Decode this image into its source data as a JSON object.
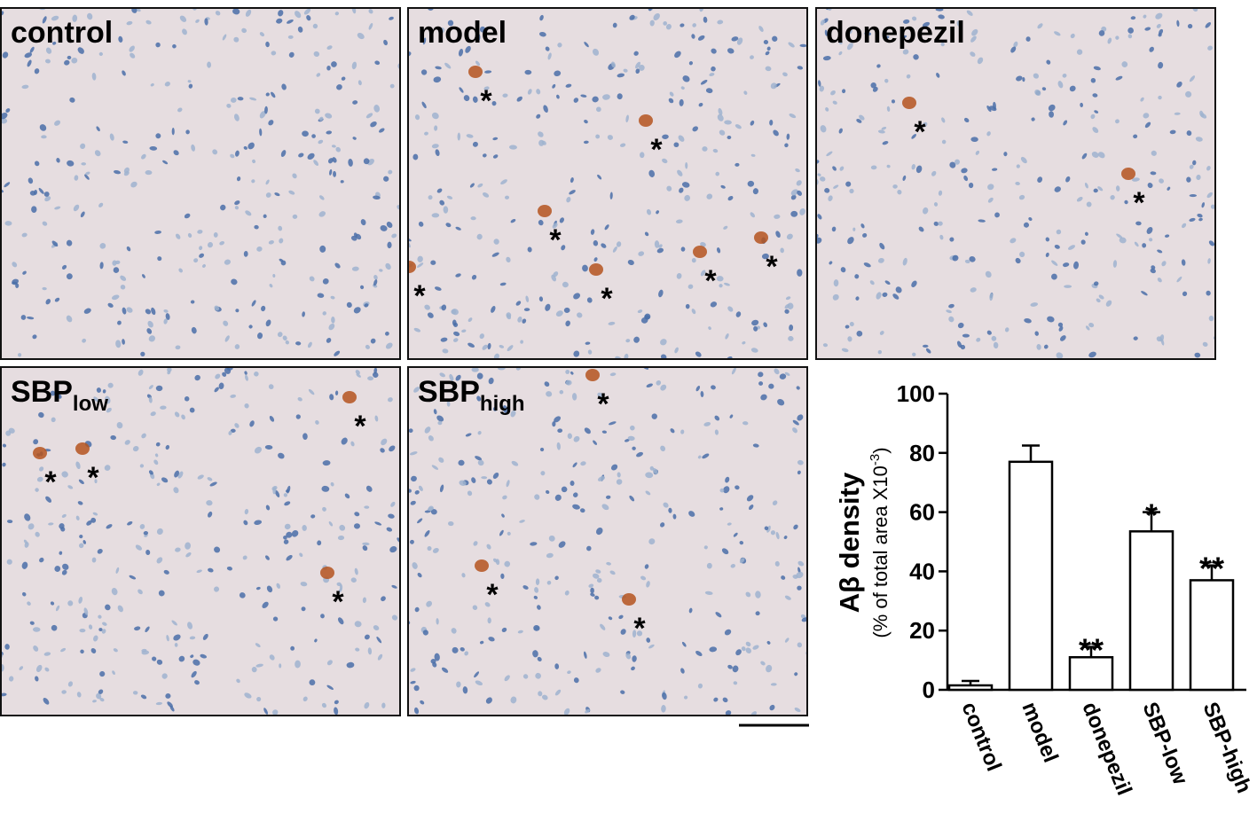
{
  "panels": [
    {
      "label": "control",
      "annotations": []
    },
    {
      "label": "model",
      "annotations": [
        "*",
        "*",
        "*",
        "*",
        "*",
        "*",
        "*"
      ]
    },
    {
      "label": "donepezil",
      "annotations": [
        "*",
        "*"
      ]
    },
    {
      "label": "SBP",
      "subscript": "low",
      "annotations": [
        "*",
        "*",
        "*",
        "*"
      ]
    },
    {
      "label": "SBP",
      "subscript": "high",
      "annotations": [
        "*",
        "*",
        "*"
      ]
    }
  ],
  "chart_data": {
    "type": "bar",
    "y_label": "Aβ density",
    "y_sublabel": {
      "text": "(% of total area X10",
      "sup": "-3",
      "end": ")"
    },
    "categories": [
      "control",
      "model",
      "donepezil",
      "SBP-low",
      "SBP-high"
    ],
    "values": [
      1.5,
      77,
      11,
      53.5,
      37
    ],
    "errors": [
      1.5,
      5.5,
      3.5,
      6.5,
      5
    ],
    "significance": [
      null,
      null,
      "**",
      "*",
      "**"
    ],
    "color": "#ffffff",
    "ylim": [
      0,
      100
    ],
    "yticks": [
      0,
      20,
      40,
      60,
      80,
      100
    ]
  }
}
